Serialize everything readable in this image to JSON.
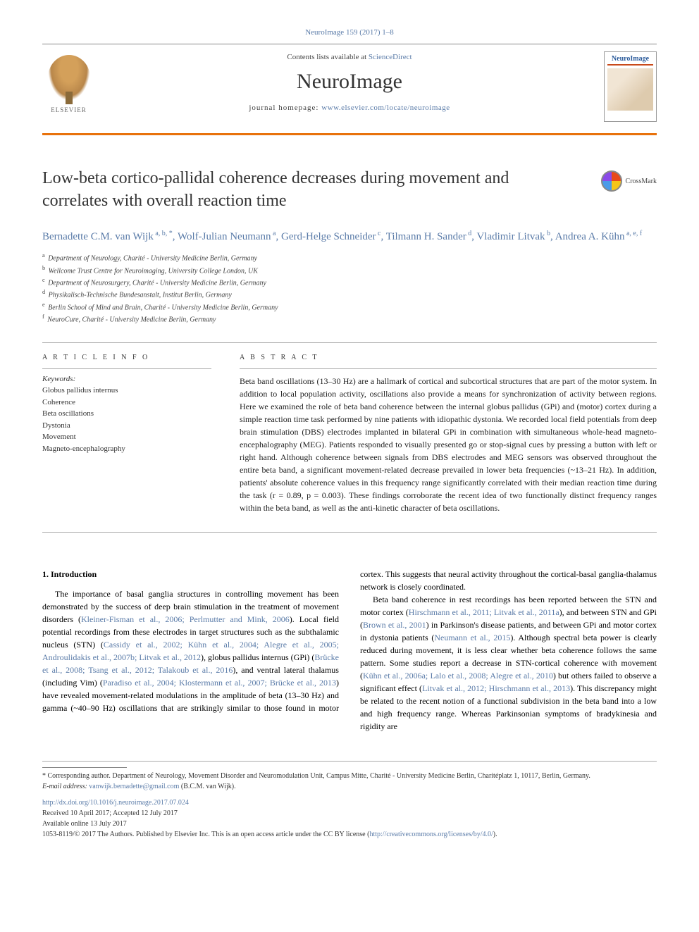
{
  "citation": "NeuroImage 159 (2017) 1–8",
  "header": {
    "contents_prefix": "Contents lists available at ",
    "contents_link": "ScienceDirect",
    "journal_name": "NeuroImage",
    "homepage_prefix": "journal homepage: ",
    "homepage_url": "www.elsevier.com/locate/neuroimage",
    "publisher": "ELSEVIER",
    "cover_title": "NeuroImage"
  },
  "article": {
    "title": "Low-beta cortico-pallidal coherence decreases during movement and correlates with overall reaction time",
    "crossmark": "CrossMark",
    "authors_html": "Bernadette C.M. van Wijk<sup> a, b, *</sup>, Wolf-Julian Neumann<sup> a</sup>, Gerd-Helge Schneider<sup> c</sup>, Tilmann H. Sander<sup> d</sup>, Vladimir Litvak<sup> b</sup>, Andrea A. Kühn<sup> a, e, f</sup>",
    "affiliations": [
      {
        "sup": "a",
        "text": "Department of Neurology, Charité - University Medicine Berlin, Germany"
      },
      {
        "sup": "b",
        "text": "Wellcome Trust Centre for Neuroimaging, University College London, UK"
      },
      {
        "sup": "c",
        "text": "Department of Neurosurgery, Charité - University Medicine Berlin, Germany"
      },
      {
        "sup": "d",
        "text": "Physikalisch-Technische Bundesanstalt, Institut Berlin, Germany"
      },
      {
        "sup": "e",
        "text": "Berlin School of Mind and Brain, Charité - University Medicine Berlin, Germany"
      },
      {
        "sup": "f",
        "text": "NeuroCure, Charité - University Medicine Berlin, Germany"
      }
    ]
  },
  "article_info": {
    "label": "A R T I C L E  I N F O",
    "keywords_label": "Keywords:",
    "keywords": [
      "Globus pallidus internus",
      "Coherence",
      "Beta oscillations",
      "Dystonia",
      "Movement",
      "Magneto-encephalography"
    ]
  },
  "abstract": {
    "label": "A B S T R A C T",
    "text": "Beta band oscillations (13–30 Hz) are a hallmark of cortical and subcortical structures that are part of the motor system. In addition to local population activity, oscillations also provide a means for synchronization of activity between regions. Here we examined the role of beta band coherence between the internal globus pallidus (GPi) and (motor) cortex during a simple reaction time task performed by nine patients with idiopathic dystonia. We recorded local field potentials from deep brain stimulation (DBS) electrodes implanted in bilateral GPi in combination with simultaneous whole-head magneto-encephalography (MEG). Patients responded to visually presented go or stop-signal cues by pressing a button with left or right hand. Although coherence between signals from DBS electrodes and MEG sensors was observed throughout the entire beta band, a significant movement-related decrease prevailed in lower beta frequencies (~13–21 Hz). In addition, patients' absolute coherence values in this frequency range significantly correlated with their median reaction time during the task (r = 0.89, p = 0.003). These findings corroborate the recent idea of two functionally distinct frequency ranges within the beta band, as well as the anti-kinetic character of beta oscillations."
  },
  "body": {
    "heading": "1. Introduction",
    "p1_pre": "The importance of basal ganglia structures in controlling movement has been demonstrated by the success of deep brain stimulation in the treatment of movement disorders (",
    "p1_link1": "Kleiner-Fisman et al., 2006; Perlmutter and Mink, 2006",
    "p1_mid1": "). Local field potential recordings from these electrodes in target structures such as the subthalamic nucleus (STN) (",
    "p1_link2": "Cassidy et al., 2002; Kühn et al., 2004; Alegre et al., 2005; Androulidakis et al., 2007b; Litvak et al., 2012",
    "p1_mid2": "), globus pallidus internus (GPi) (",
    "p1_link3": "Brücke et al., 2008; Tsang et al., 2012; Talakoub et al., 2016",
    "p1_mid3": "), and ventral lateral thalamus (including Vim) (",
    "p1_link4": "Paradiso et al., 2004; Klostermann et al., 2007; Brücke et al., 2013",
    "p1_post": ") have revealed movement-related modulations in the amplitude of beta (13–30 Hz) and gamma (~40–90 Hz) oscillations that are strikingly similar to those found in motor cortex. This suggests that neural activity throughout the cortical-basal ganglia-thalamus network is closely coordinated.",
    "p2_pre": "Beta band coherence in rest recordings has been reported between the STN and motor cortex (",
    "p2_link1": "Hirschmann et al., 2011; Litvak et al., 2011a",
    "p2_mid1": "), and between STN and GPi (",
    "p2_link2": "Brown et al., 2001",
    "p2_mid2": ") in Parkinson's disease patients, and between GPi and motor cortex in dystonia patients (",
    "p2_link3": "Neumann et al., 2015",
    "p2_mid3": "). Although spectral beta power is clearly reduced during movement, it is less clear whether beta coherence follows the same pattern. Some studies report a decrease in STN-cortical coherence with movement (",
    "p2_link4": "Kühn et al., 2006a; Lalo et al., 2008; Alegre et al., 2010",
    "p2_mid4": ") but others failed to observe a significant effect (",
    "p2_link5": "Litvak et al., 2012; Hirschmann et al., 2013",
    "p2_post": "). This discrepancy might be related to the recent notion of a functional subdivision in the beta band into a low and high frequency range. Whereas Parkinsonian symptoms of bradykinesia and rigidity are"
  },
  "footer": {
    "corresponding": "* Corresponding author. Department of Neurology, Movement Disorder and Neuromodulation Unit, Campus Mitte, Charité - University Medicine Berlin, Charitéplatz 1, 10117, Berlin, Germany.",
    "email_label": "E-mail address: ",
    "email": "vanwijk.bernadette@gmail.com",
    "email_suffix": " (B.C.M. van Wijk).",
    "doi": "http://dx.doi.org/10.1016/j.neuroimage.2017.07.024",
    "received": "Received 10 April 2017; Accepted 12 July 2017",
    "available": "Available online 13 July 2017",
    "copyright_pre": "1053-8119/© 2017 The Authors. Published by Elsevier Inc. This is an open access article under the CC BY license (",
    "copyright_link": "http://creativecommons.org/licenses/by/4.0/",
    "copyright_post": ")."
  }
}
